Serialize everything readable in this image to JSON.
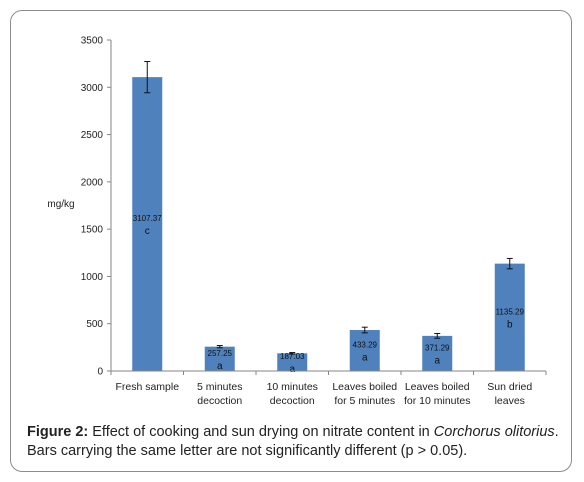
{
  "chart_data": {
    "type": "bar",
    "categories": [
      [
        "Fresh sample"
      ],
      [
        "5 minutes",
        "decoction"
      ],
      [
        "10 minutes",
        "decoction"
      ],
      [
        "Leaves boiled",
        "for 5 minutes"
      ],
      [
        "Leaves boiled",
        "for 10 minutes"
      ],
      [
        "Sun dried",
        "leaves"
      ]
    ],
    "values": [
      3107.37,
      257.25,
      187.03,
      433.29,
      371.29,
      1135.29
    ],
    "value_labels": [
      "3107.37",
      "257.25",
      "187.03",
      "433.29",
      "371.29",
      "1135.29"
    ],
    "errors": [
      165,
      12,
      8,
      30,
      25,
      55
    ],
    "letters": [
      "c",
      "a",
      "a",
      "a",
      "a",
      "b"
    ],
    "ylabel": "mg/kg",
    "ylim": [
      0,
      3500
    ],
    "yticks": [
      0,
      500,
      1000,
      1500,
      2000,
      2500,
      3000,
      3500
    ],
    "bar_color": "#4f81bd",
    "grid": false
  },
  "caption": {
    "label": "Figure 2:",
    "text_before": " Effect of cooking and sun drying on nitrate content in ",
    "species": "Corchorus olitorius",
    "text_after": ". Bars carrying the same letter are not significantly different (p > 0.05)."
  }
}
